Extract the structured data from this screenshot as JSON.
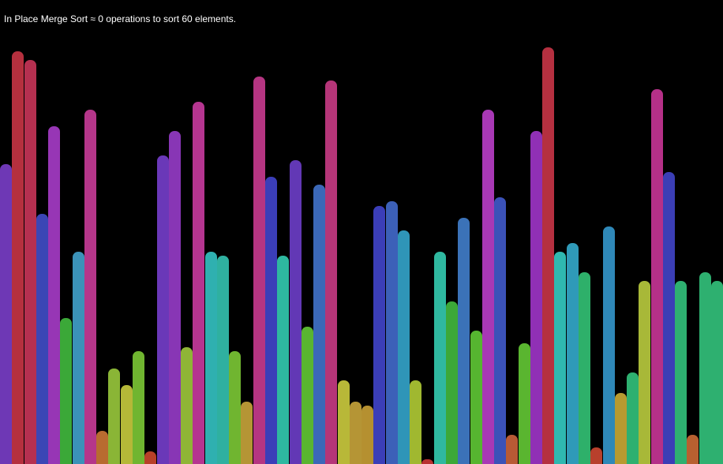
{
  "status": {
    "algorithm": "In Place Merge Sort",
    "approx_symbol": "≈",
    "operations": "0",
    "ops_label": "operations to sort",
    "element_count": "60",
    "elements_label": "elements.",
    "full_text": "In Place Merge Sort ≈ 0 operations to sort 60 elements."
  },
  "array": {
    "max_value": 1.0,
    "values": [
      0.72,
      0.99,
      0.97,
      0.6,
      0.81,
      0.35,
      0.51,
      0.85,
      0.08,
      0.23,
      0.19,
      0.27,
      0.03,
      0.74,
      0.8,
      0.28,
      0.87,
      0.51,
      0.5,
      0.27,
      0.15,
      0.93,
      0.69,
      0.5,
      0.73,
      0.33,
      0.67,
      0.92,
      0.2,
      0.15,
      0.14,
      0.62,
      0.63,
      0.56,
      0.2,
      0.01,
      0.51,
      0.39,
      0.59,
      0.32,
      0.85,
      0.64,
      0.07,
      0.29,
      0.8,
      1.0,
      0.51,
      0.53,
      0.46,
      0.04,
      0.57,
      0.17,
      0.22,
      0.44,
      0.9,
      0.7,
      0.44,
      0.07,
      0.46,
      0.44
    ],
    "colors": [
      "#6e38b5",
      "#b5303e",
      "#b53050",
      "#3b46b5",
      "#9736b5",
      "#3ba838",
      "#3b92b8",
      "#b5368a",
      "#b86b30",
      "#8ab536",
      "#b5b838",
      "#70b530",
      "#b84028",
      "#6a38b8",
      "#8836b5",
      "#8fb536",
      "#b53590",
      "#2fb0b0",
      "#2fb0a0",
      "#70b530",
      "#b59535",
      "#b53582",
      "#3b3eb8",
      "#2eb8a0",
      "#6238b5",
      "#59b530",
      "#3b68b8",
      "#b53578",
      "#b8b838",
      "#b59535",
      "#b59030",
      "#3b3eb8",
      "#3c60b8",
      "#2f95b8",
      "#a0b830",
      "#b83030",
      "#2fb8a0",
      "#3ca838",
      "#3b72b8",
      "#56b530",
      "#a838b5",
      "#3b52b8",
      "#b85a35",
      "#5ab530",
      "#9030b5",
      "#b53040",
      "#2fb8b0",
      "#2f9ab8",
      "#2eb06a",
      "#b8402c",
      "#2f88b8",
      "#b89a30",
      "#2eb070",
      "#a8b838",
      "#b53088",
      "#3b3eb5",
      "#2eb070",
      "#b86030",
      "#2eb070",
      "#2eb070"
    ]
  }
}
